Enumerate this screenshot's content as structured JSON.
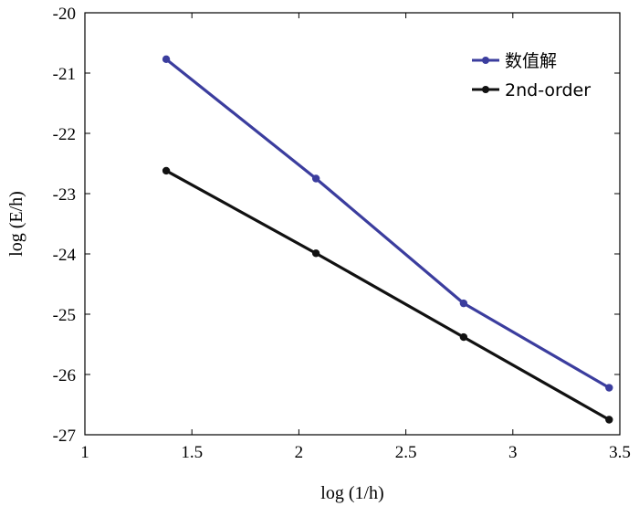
{
  "chart_data": {
    "type": "line",
    "title": "",
    "xlabel": "log (1/h)",
    "ylabel": "log (E/h)",
    "xlim": [
      1,
      3.5
    ],
    "ylim": [
      -27,
      -20
    ],
    "xticks": [
      1,
      1.5,
      2,
      2.5,
      3,
      3.5
    ],
    "yticks": [
      -20,
      -21,
      -22,
      -23,
      -24,
      -25,
      -26,
      -27
    ],
    "xtick_labels": [
      "1",
      "1.5",
      "2",
      "2.5",
      "3",
      "3.5"
    ],
    "ytick_labels": [
      "-20",
      "-21",
      "-22",
      "-23",
      "-24",
      "-25",
      "-26",
      "-27"
    ],
    "grid": false,
    "legend_position": "top-right",
    "series": [
      {
        "name": "数值解",
        "color": "#3b3d9e",
        "x": [
          1.38,
          2.08,
          2.77,
          3.45
        ],
        "y": [
          -20.77,
          -22.75,
          -24.82,
          -26.22
        ]
      },
      {
        "name": "2nd-order",
        "color": "#111111",
        "x": [
          1.38,
          2.08,
          2.77,
          3.45
        ],
        "y": [
          -22.62,
          -23.99,
          -25.38,
          -26.75
        ]
      }
    ]
  }
}
